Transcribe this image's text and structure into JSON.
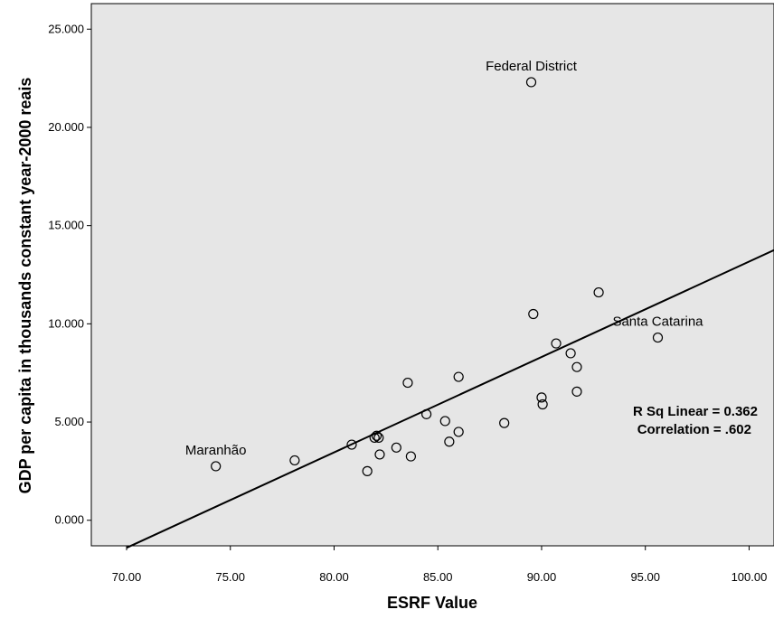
{
  "chart_data": {
    "type": "scatter",
    "xlabel": "ESRF Value",
    "ylabel": "GDP per capita in thousands constant year-2000 reais",
    "xlim": [
      68.3,
      101.2
    ],
    "ylim": [
      -1.3,
      26.3
    ],
    "x_ticks": [
      {
        "value": 70,
        "label": "70.00"
      },
      {
        "value": 75,
        "label": "75.00"
      },
      {
        "value": 80,
        "label": "80.00"
      },
      {
        "value": 85,
        "label": "85.00"
      },
      {
        "value": 90,
        "label": "90.00"
      },
      {
        "value": 95,
        "label": "95.00"
      },
      {
        "value": 100,
        "label": "100.00"
      }
    ],
    "y_ticks": [
      {
        "value": 0,
        "label": "0.000"
      },
      {
        "value": 5,
        "label": "5.000"
      },
      {
        "value": 10,
        "label": "10.000"
      },
      {
        "value": 15,
        "label": "15.000"
      },
      {
        "value": 20,
        "label": "20.000"
      },
      {
        "value": 25,
        "label": "25.000"
      }
    ],
    "grid": false,
    "plot_background": "#e6e6e6",
    "points": [
      {
        "x": 74.3,
        "y": 2.75,
        "label": "Maranhão"
      },
      {
        "x": 78.1,
        "y": 3.05
      },
      {
        "x": 80.85,
        "y": 3.85
      },
      {
        "x": 81.95,
        "y": 4.2
      },
      {
        "x": 82.05,
        "y": 4.3
      },
      {
        "x": 82.15,
        "y": 4.2
      },
      {
        "x": 81.6,
        "y": 2.5
      },
      {
        "x": 82.2,
        "y": 3.35
      },
      {
        "x": 83.0,
        "y": 3.7
      },
      {
        "x": 83.7,
        "y": 3.25
      },
      {
        "x": 83.55,
        "y": 7.0
      },
      {
        "x": 84.45,
        "y": 5.4
      },
      {
        "x": 85.35,
        "y": 5.05
      },
      {
        "x": 85.55,
        "y": 4.0
      },
      {
        "x": 86.0,
        "y": 4.5
      },
      {
        "x": 86.0,
        "y": 7.3
      },
      {
        "x": 88.2,
        "y": 4.95
      },
      {
        "x": 89.5,
        "y": 22.3,
        "label": "Federal District"
      },
      {
        "x": 89.6,
        "y": 10.5
      },
      {
        "x": 90.0,
        "y": 6.25
      },
      {
        "x": 90.05,
        "y": 5.9
      },
      {
        "x": 90.7,
        "y": 9.0
      },
      {
        "x": 91.4,
        "y": 8.5
      },
      {
        "x": 91.7,
        "y": 7.8
      },
      {
        "x": 91.7,
        "y": 6.55
      },
      {
        "x": 92.75,
        "y": 11.6
      },
      {
        "x": 95.6,
        "y": 9.3,
        "label": "Santa Catarina"
      }
    ],
    "fit_line": {
      "x": [
        70.0,
        101.2
      ],
      "y": [
        -1.4,
        13.75
      ]
    },
    "annotations": [
      "R Sq Linear = 0.362",
      "Correlation = .602"
    ]
  }
}
